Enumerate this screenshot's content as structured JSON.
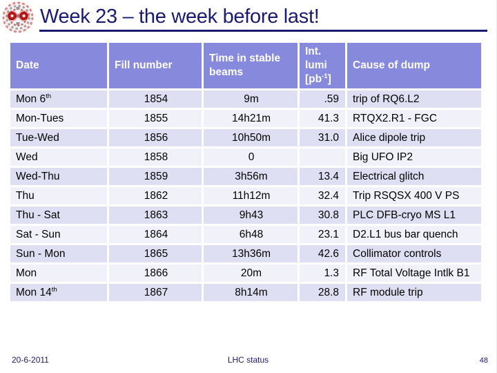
{
  "colors": {
    "title": "#1A1A72",
    "header-bg": "#8689DC",
    "header-text": "#FFFFFF",
    "row-a": "#DFDFF3",
    "row-b": "#F1F1FA",
    "cell-text": "#000000",
    "logo-red": "#CC1414",
    "logo-gray": "#A9A2A2"
  },
  "slide": {
    "title": "Week 23 – the week before last!",
    "footer": {
      "date": "20-6-2011",
      "center": "LHC status",
      "page": "48"
    }
  },
  "table": {
    "headers": {
      "date": "Date",
      "fill": "Fill number",
      "time": "Time in stable beams",
      "lumi_line1": "Int.",
      "lumi_line2": "lumi",
      "lumi_unit_open": "[pb",
      "lumi_unit_sup": "-1",
      "lumi_unit_close": "]",
      "cause": "Cause of dump"
    },
    "rows": [
      {
        "date": "Mon 6",
        "date_sup": "th",
        "fill": "1854",
        "time": "9m",
        "lumi": ".59",
        "cause": "trip of RQ6.L2"
      },
      {
        "date": "Mon-Tues",
        "date_sup": "",
        "fill": "1855",
        "time": "14h21m",
        "lumi": "41.3",
        "cause": "RTQX2.R1 - FGC"
      },
      {
        "date": "Tue-Wed",
        "date_sup": "",
        "fill": "1856",
        "time": "10h50m",
        "lumi": "31.0",
        "cause": "Alice dipole trip"
      },
      {
        "date": "Wed",
        "date_sup": "",
        "fill": "1858",
        "time": "0",
        "lumi": "",
        "cause": "Big UFO IP2"
      },
      {
        "date": "Wed-Thu",
        "date_sup": "",
        "fill": "1859",
        "time": "3h56m",
        "lumi": "13.4",
        "cause": "Electrical glitch"
      },
      {
        "date": "Thu",
        "date_sup": "",
        "fill": "1862",
        "time": "11h12m",
        "lumi": "32.4",
        "cause": "Trip RSQSX 400 V PS"
      },
      {
        "date": "Thu - Sat",
        "date_sup": "",
        "fill": "1863",
        "time": "9h43",
        "lumi": "30.8",
        "cause": "PLC DFB-cryo MS L1"
      },
      {
        "date": "Sat - Sun",
        "date_sup": "",
        "fill": "1864",
        "time": "6h48",
        "lumi": "23.1",
        "cause": "D2.L1 bus bar quench"
      },
      {
        "date": "Sun - Mon",
        "date_sup": "",
        "fill": "1865",
        "time": "13h36m",
        "lumi": "42.6",
        "cause": "Collimator controls"
      },
      {
        "date": "Mon",
        "date_sup": "",
        "fill": "1866",
        "time": "20m",
        "lumi": "1.3",
        "cause": "RF Total Voltage Intlk B1"
      },
      {
        "date": "Mon 14",
        "date_sup": "th",
        "fill": "1867",
        "time": "8h14m",
        "lumi": "28.8",
        "cause": "RF module trip"
      }
    ]
  }
}
